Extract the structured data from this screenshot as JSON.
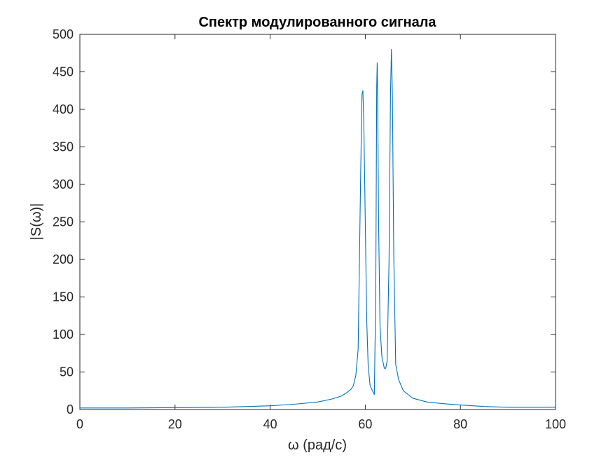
{
  "chart_data": {
    "type": "line",
    "title": "Спектр модулированного сигнала",
    "xlabel": "ω (рад/с)",
    "ylabel": "|S(ω)|",
    "xlim": [
      0,
      100
    ],
    "ylim": [
      0,
      500
    ],
    "x_ticks": [
      "0",
      "20",
      "40",
      "60",
      "80",
      "100"
    ],
    "y_ticks": [
      "0",
      "50",
      "100",
      "150",
      "200",
      "250",
      "300",
      "350",
      "400",
      "450",
      "500"
    ],
    "grid": false,
    "line_color": "#0072BD",
    "series": [
      {
        "x": [
          0,
          10,
          20,
          30,
          40,
          45,
          50,
          53,
          55,
          56,
          57,
          57.5,
          58,
          58.5,
          59,
          59.3,
          59.5,
          59.7,
          60,
          60.3,
          60.6,
          61,
          61.5,
          61.9,
          62.2,
          62.4,
          62.5,
          62.6,
          62.8,
          63.1,
          63.5,
          64,
          64.3,
          64.6,
          65,
          65.3,
          65.5,
          65.7,
          66,
          66.4,
          67,
          68,
          70,
          73,
          76,
          80,
          85,
          90,
          95,
          100
        ],
        "y": [
          2,
          2,
          2.5,
          3,
          5,
          7,
          10,
          14,
          18,
          22,
          27,
          32,
          45,
          80,
          300,
          420,
          425,
          380,
          250,
          120,
          60,
          32,
          25,
          20,
          150,
          430,
          462,
          420,
          250,
          110,
          70,
          55,
          55,
          65,
          200,
          420,
          480,
          420,
          200,
          60,
          40,
          25,
          15,
          10,
          8,
          6,
          4,
          3,
          3,
          3
        ]
      }
    ]
  }
}
